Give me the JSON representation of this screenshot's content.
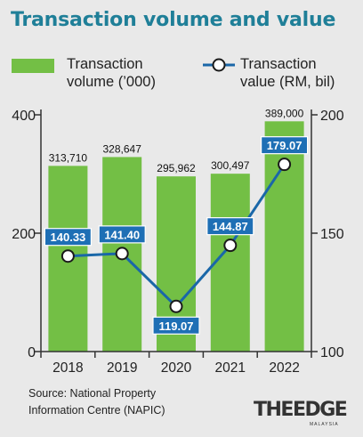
{
  "title": "Transaction volume and value",
  "legend": {
    "bar_line1": "Transaction",
    "bar_line2": "volume (’000)",
    "line_line1": "Transaction",
    "line_line2": "value (RM, bil)"
  },
  "source_line1": "Source: National Property",
  "source_line2": "Information Centre (NAPIC)",
  "brand": "THEEDGE",
  "brand_sub": "MALAYSIA",
  "colors": {
    "bar": "#73bf45",
    "line": "#1a67a8",
    "label_box": "#1e6fb5",
    "title": "#1f7f98"
  },
  "chart_data": {
    "type": "bar",
    "categories": [
      "2018",
      "2019",
      "2020",
      "2021",
      "2022"
    ],
    "series": [
      {
        "name": "Transaction volume (’000)",
        "type": "bar",
        "axis": "left",
        "values": [
          313710,
          328647,
          295962,
          300497,
          389000
        ],
        "labels": [
          "313,710",
          "328,647",
          "295,962",
          "300,497",
          "389,000"
        ]
      },
      {
        "name": "Transaction value (RM, bil)",
        "type": "line",
        "axis": "right",
        "values": [
          140.33,
          141.4,
          119.07,
          144.87,
          179.07
        ],
        "labels": [
          "140.33",
          "141.40",
          "119.07",
          "144.87",
          "179.07"
        ]
      }
    ],
    "y_left": {
      "min": 0,
      "max": 400000,
      "ticks": [
        0,
        200000,
        400000
      ],
      "tick_labels": [
        "0",
        "200",
        "400"
      ]
    },
    "y_right": {
      "min": 100,
      "max": 200,
      "ticks": [
        100,
        150,
        200
      ],
      "tick_labels": [
        "100",
        "150",
        "200"
      ]
    },
    "grid": false,
    "legend_position": "top"
  }
}
